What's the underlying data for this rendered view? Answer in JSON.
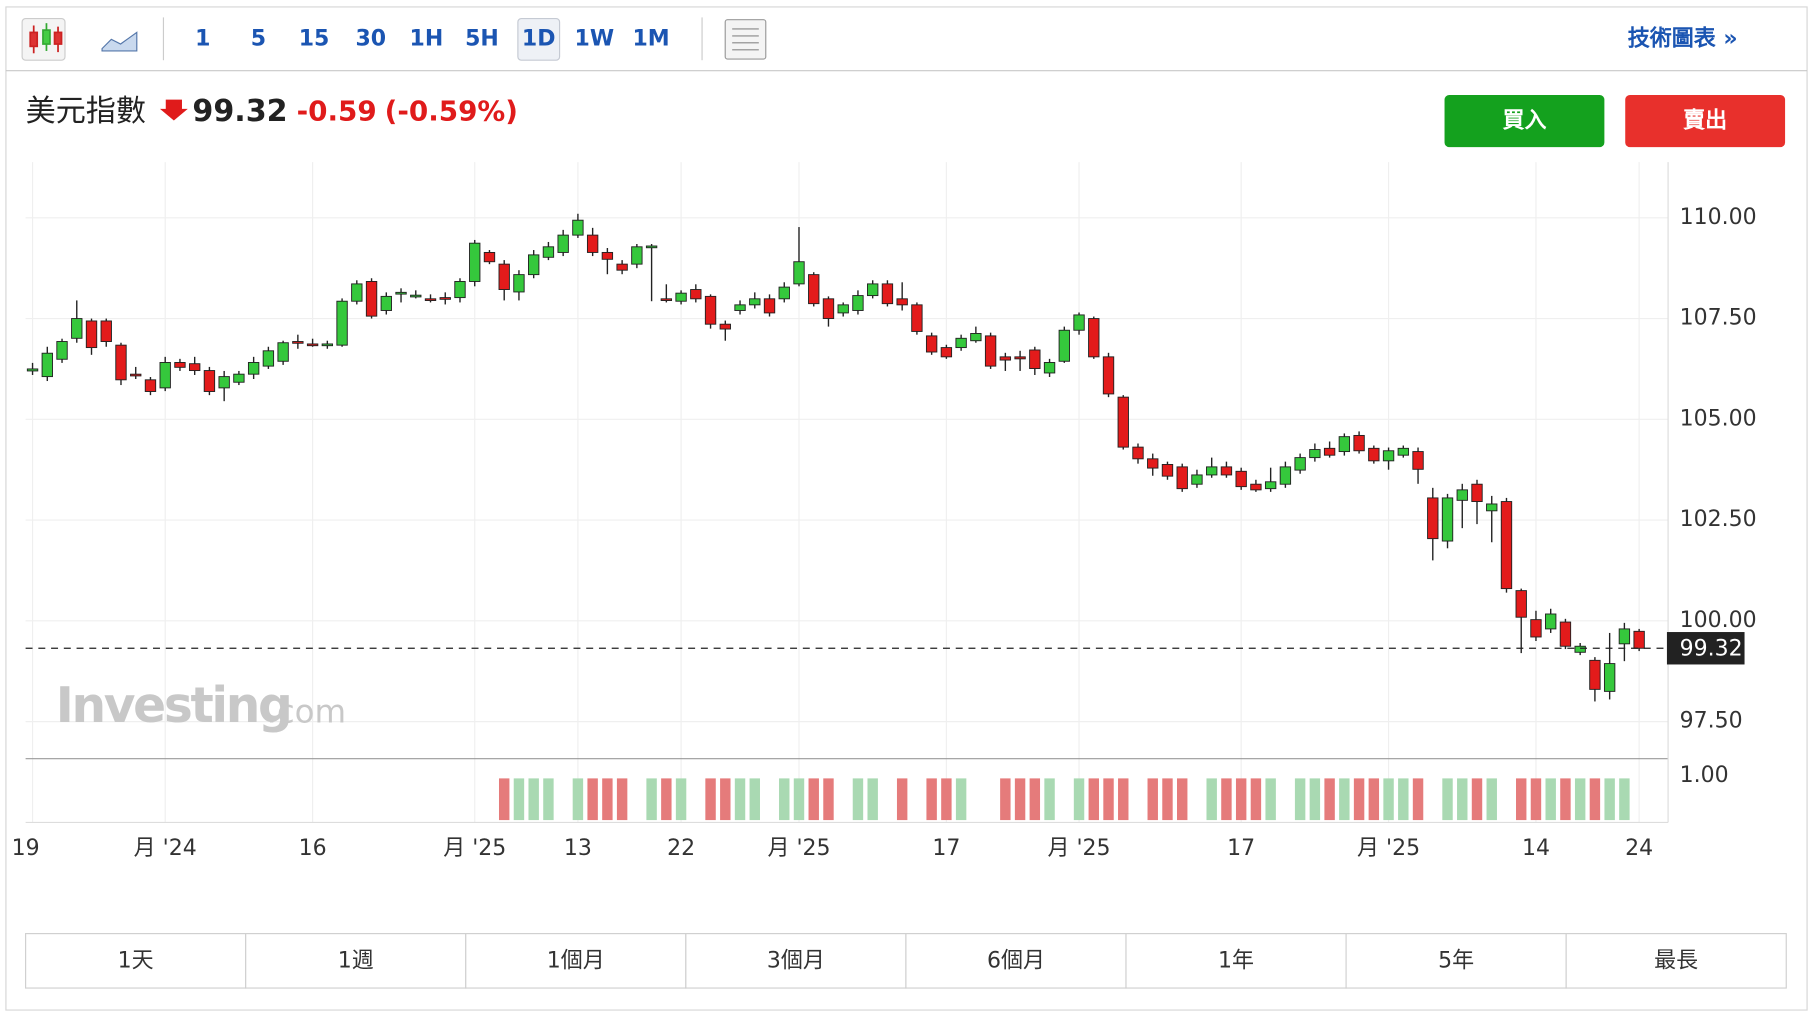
{
  "toolbar": {
    "intervals": [
      "1",
      "5",
      "15",
      "30",
      "1H",
      "5H",
      "1D",
      "1W",
      "1M"
    ],
    "link": "技術圖表 »"
  },
  "header": {
    "name": "美元指數",
    "change": "-0.59",
    "change_pct": "(-0.59%)",
    "buy": "買入",
    "sell": "賣出"
  },
  "watermark": {
    "main": "Investing",
    "suffix": ".com"
  },
  "chart_data": {
    "type": "candlestick",
    "categories": [
      "19",
      null,
      null,
      null,
      null,
      null,
      null,
      null,
      null,
      "月 '24",
      null,
      null,
      null,
      null,
      null,
      null,
      null,
      null,
      null,
      "16",
      null,
      null,
      null,
      null,
      null,
      null,
      null,
      null,
      null,
      null,
      "月 '25",
      null,
      null,
      null,
      null,
      null,
      null,
      "13",
      null,
      null,
      null,
      null,
      null,
      null,
      "22",
      null,
      null,
      null,
      null,
      null,
      null,
      null,
      "月 '25",
      null,
      null,
      null,
      null,
      null,
      null,
      null,
      null,
      null,
      "17",
      null,
      null,
      null,
      null,
      null,
      null,
      null,
      null,
      "月 '25",
      null,
      null,
      null,
      null,
      null,
      null,
      null,
      null,
      null,
      null,
      "17",
      null,
      null,
      null,
      null,
      null,
      null,
      null,
      null,
      null,
      "月 '25",
      null,
      null,
      null,
      null,
      null,
      null,
      null,
      null,
      null,
      "14",
      null,
      null,
      null,
      null,
      null,
      null,
      "24"
    ],
    "open": [
      106.2,
      106.06,
      106.49,
      107.01,
      107.44,
      107.44,
      106.84,
      106.12,
      105.98,
      105.78,
      106.41,
      106.38,
      106.21,
      105.78,
      105.92,
      106.12,
      106.32,
      106.44,
      106.93,
      106.87,
      106.85,
      106.84,
      107.93,
      108.42,
      107.7,
      108.13,
      108.07,
      107.99,
      108.02,
      108.02,
      108.42,
      109.14,
      108.85,
      108.16,
      108.59,
      109.02,
      109.14,
      109.57,
      109.57,
      109.14,
      108.85,
      108.85,
      109.28,
      107.99,
      107.93,
      108.22,
      108.05,
      107.36,
      107.7,
      107.84,
      107.99,
      107.99,
      108.36,
      108.59,
      107.99,
      107.64,
      107.7,
      108.07,
      108.36,
      107.99,
      107.84,
      107.07,
      106.78,
      106.78,
      106.95,
      107.07,
      106.55,
      106.55,
      106.72,
      106.15,
      106.44,
      107.21,
      107.5,
      106.55,
      105.55,
      104.31,
      104.02,
      103.88,
      103.82,
      103.39,
      103.62,
      103.82,
      103.71,
      103.39,
      103.28,
      103.39,
      103.74,
      104.05,
      104.28,
      104.2,
      104.6,
      104.28,
      103.97,
      104.11,
      104.2,
      103.05,
      101.98,
      102.99,
      103.39,
      102.73,
      102.96,
      100.75,
      100.03,
      99.8,
      99.97,
      99.22,
      99.02,
      98.25,
      99.43,
      99.74
    ],
    "high": [
      106.4,
      106.8,
      107.0,
      107.95,
      107.5,
      107.5,
      106.9,
      106.3,
      106.05,
      106.55,
      106.5,
      106.55,
      106.3,
      106.2,
      106.2,
      106.55,
      106.8,
      106.95,
      107.1,
      107.0,
      106.95,
      108.0,
      108.45,
      108.5,
      108.15,
      108.25,
      108.2,
      108.1,
      108.15,
      108.5,
      109.45,
      109.2,
      108.95,
      108.7,
      109.2,
      109.4,
      109.7,
      110.1,
      109.75,
      109.25,
      108.95,
      109.35,
      109.35,
      108.35,
      108.2,
      108.35,
      108.1,
      107.45,
      107.95,
      108.15,
      108.1,
      108.4,
      109.77,
      108.65,
      108.05,
      107.9,
      108.2,
      108.45,
      108.45,
      108.4,
      107.9,
      107.15,
      106.85,
      107.1,
      107.3,
      107.15,
      106.65,
      106.7,
      106.8,
      106.5,
      107.3,
      107.65,
      107.55,
      106.65,
      105.6,
      104.4,
      104.15,
      103.95,
      103.9,
      103.75,
      104.05,
      103.95,
      103.8,
      103.5,
      103.8,
      103.95,
      104.15,
      104.4,
      104.45,
      104.65,
      104.7,
      104.35,
      104.3,
      104.35,
      104.3,
      103.3,
      103.15,
      103.4,
      103.5,
      103.1,
      103.05,
      100.8,
      100.25,
      100.3,
      100.05,
      99.45,
      99.1,
      99.7,
      99.95,
      99.8
    ],
    "low": [
      106.1,
      105.95,
      106.4,
      106.9,
      106.6,
      106.8,
      105.85,
      106.0,
      105.6,
      105.7,
      106.2,
      106.1,
      105.6,
      105.45,
      105.85,
      106.0,
      106.25,
      106.35,
      106.75,
      106.8,
      106.75,
      106.8,
      107.85,
      107.5,
      107.6,
      107.9,
      108.0,
      107.9,
      107.85,
      107.9,
      108.3,
      108.85,
      107.95,
      107.95,
      108.5,
      108.95,
      109.05,
      109.5,
      109.05,
      108.6,
      108.6,
      108.75,
      107.93,
      107.9,
      107.85,
      107.9,
      107.25,
      106.95,
      107.6,
      107.75,
      107.55,
      107.9,
      108.3,
      107.8,
      107.3,
      107.55,
      107.6,
      108.0,
      107.8,
      107.7,
      107.1,
      106.6,
      106.5,
      106.7,
      106.9,
      106.25,
      106.2,
      106.2,
      106.1,
      106.05,
      106.4,
      107.1,
      106.5,
      105.55,
      104.25,
      103.9,
      103.6,
      103.5,
      103.2,
      103.3,
      103.55,
      103.55,
      103.25,
      103.2,
      103.2,
      103.3,
      103.65,
      103.95,
      104.05,
      104.1,
      104.15,
      103.9,
      103.75,
      104.05,
      103.4,
      101.5,
      101.8,
      102.3,
      102.4,
      101.95,
      100.7,
      99.2,
      99.5,
      99.7,
      99.3,
      99.15,
      98.0,
      98.05,
      99.0,
      99.25
    ],
    "close": [
      106.25,
      106.64,
      106.93,
      107.5,
      106.78,
      106.93,
      105.98,
      106.1,
      105.69,
      106.41,
      106.29,
      106.21,
      105.69,
      106.06,
      106.12,
      106.41,
      106.7,
      106.9,
      106.9,
      106.85,
      106.87,
      107.93,
      108.36,
      107.56,
      108.05,
      108.15,
      108.08,
      107.97,
      108.0,
      108.42,
      109.37,
      108.91,
      108.22,
      108.59,
      109.08,
      109.28,
      109.57,
      109.94,
      109.14,
      108.97,
      108.7,
      109.28,
      109.3,
      107.97,
      108.13,
      107.99,
      107.36,
      107.24,
      107.84,
      107.99,
      107.64,
      108.28,
      108.91,
      107.87,
      107.5,
      107.84,
      108.07,
      108.36,
      107.87,
      107.84,
      107.18,
      106.67,
      106.55,
      107.01,
      107.13,
      106.32,
      106.47,
      106.5,
      106.26,
      106.41,
      107.21,
      107.59,
      106.55,
      105.63,
      104.31,
      104.02,
      103.79,
      103.59,
      103.28,
      103.62,
      103.82,
      103.62,
      103.33,
      103.25,
      103.45,
      103.82,
      104.05,
      104.25,
      104.11,
      104.57,
      104.22,
      103.97,
      104.22,
      104.28,
      103.76,
      102.04,
      103.05,
      103.25,
      102.96,
      102.9,
      100.8,
      100.09,
      99.6,
      100.17,
      99.37,
      99.37,
      98.3,
      98.94,
      99.8,
      99.32
    ],
    "volume": [
      null,
      null,
      null,
      null,
      null,
      null,
      null,
      null,
      null,
      null,
      null,
      null,
      null,
      null,
      null,
      null,
      null,
      null,
      null,
      null,
      null,
      null,
      null,
      null,
      null,
      null,
      null,
      null,
      null,
      null,
      null,
      null,
      1,
      1,
      1,
      1,
      null,
      1,
      1,
      1,
      1,
      null,
      1,
      1,
      1,
      null,
      1,
      1,
      1,
      1,
      null,
      1,
      1,
      1,
      1,
      null,
      1,
      1,
      null,
      1,
      null,
      1,
      1,
      1,
      null,
      null,
      1,
      1,
      1,
      1,
      null,
      1,
      1,
      1,
      1,
      null,
      1,
      1,
      1,
      null,
      1,
      1,
      1,
      1,
      1,
      null,
      1,
      1,
      1,
      1,
      1,
      1,
      1,
      1,
      1,
      null,
      1,
      1,
      1,
      1,
      null,
      1,
      1,
      1,
      1,
      1,
      1,
      1,
      1,
      null
    ],
    "up_color": "#35c83c",
    "down_color": "#e31b1b",
    "volume_up_color": "#a9d9b2",
    "volume_down_color": "#e57b7b",
    "ylim": [
      96.58,
      111.38
    ],
    "yticks": [
      {
        "value": 97.5,
        "label": "97.50"
      },
      {
        "value": 100,
        "label": "100.00"
      },
      {
        "value": 102.5,
        "label": "102.50"
      },
      {
        "value": 105,
        "label": "105.00"
      },
      {
        "value": 107.5,
        "label": "107.50"
      },
      {
        "value": 110,
        "label": "110.00"
      }
    ],
    "volume_ylim": [
      0,
      1
    ],
    "volume_yticks": [
      {
        "value": 1,
        "label": "1.00"
      }
    ],
    "last_price": 99.32,
    "grid": true
  },
  "ranges": [
    "1天",
    "1週",
    "1個月",
    "3個月",
    "6個月",
    "1年",
    "5年",
    "最長"
  ]
}
